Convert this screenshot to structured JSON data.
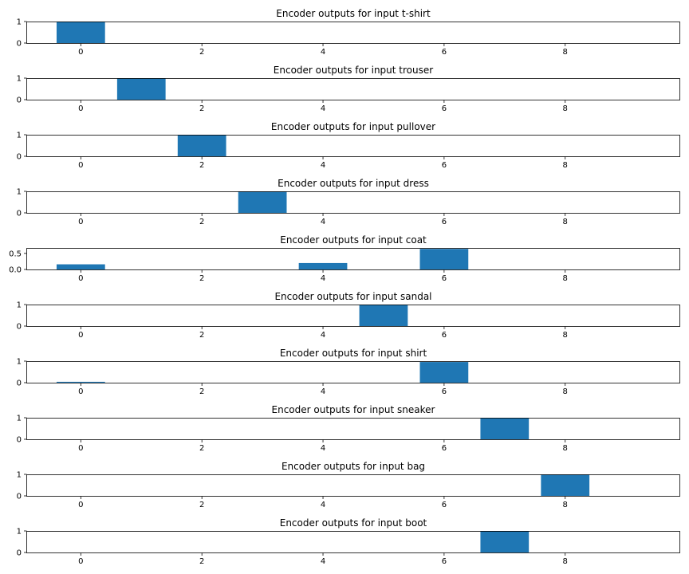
{
  "chart_data": [
    {
      "type": "bar",
      "title": "Encoder outputs for input t-shirt",
      "x": [
        0,
        1,
        2,
        3,
        4,
        5,
        6,
        7,
        8,
        9
      ],
      "values": [
        1.0,
        0,
        0,
        0,
        0,
        0,
        0,
        0,
        0,
        0
      ],
      "ylim": [
        0,
        1
      ],
      "yticks": [
        0,
        1
      ],
      "yticklabels": [
        "0",
        "1"
      ],
      "xticks": [
        0,
        2,
        4,
        6,
        8
      ],
      "xlim": [
        -0.9,
        9.9
      ]
    },
    {
      "type": "bar",
      "title": "Encoder outputs for input trouser",
      "x": [
        0,
        1,
        2,
        3,
        4,
        5,
        6,
        7,
        8,
        9
      ],
      "values": [
        0,
        1.0,
        0,
        0,
        0,
        0,
        0,
        0,
        0,
        0
      ],
      "ylim": [
        0,
        1
      ],
      "yticks": [
        0,
        1
      ],
      "yticklabels": [
        "0",
        "1"
      ],
      "xticks": [
        0,
        2,
        4,
        6,
        8
      ],
      "xlim": [
        -0.9,
        9.9
      ]
    },
    {
      "type": "bar",
      "title": "Encoder outputs for input pullover",
      "x": [
        0,
        1,
        2,
        3,
        4,
        5,
        6,
        7,
        8,
        9
      ],
      "values": [
        0,
        0,
        1.0,
        0,
        0,
        0,
        0,
        0,
        0,
        0
      ],
      "ylim": [
        0,
        1
      ],
      "yticks": [
        0,
        1
      ],
      "yticklabels": [
        "0",
        "1"
      ],
      "xticks": [
        0,
        2,
        4,
        6,
        8
      ],
      "xlim": [
        -0.9,
        9.9
      ]
    },
    {
      "type": "bar",
      "title": "Encoder outputs for input dress",
      "x": [
        0,
        1,
        2,
        3,
        4,
        5,
        6,
        7,
        8,
        9
      ],
      "values": [
        0,
        0,
        0,
        1.0,
        0,
        0,
        0,
        0,
        0,
        0
      ],
      "ylim": [
        0,
        1
      ],
      "yticks": [
        0,
        1
      ],
      "yticklabels": [
        "0",
        "1"
      ],
      "xticks": [
        0,
        2,
        4,
        6,
        8
      ],
      "xlim": [
        -0.9,
        9.9
      ]
    },
    {
      "type": "bar",
      "title": "Encoder outputs for input coat",
      "x": [
        0,
        1,
        2,
        3,
        4,
        5,
        6,
        7,
        8,
        9
      ],
      "values": [
        0.16,
        0,
        0,
        0,
        0.2,
        0,
        0.64,
        0,
        0,
        0
      ],
      "ylim": [
        0,
        0.67
      ],
      "yticks": [
        0,
        0.5
      ],
      "yticklabels": [
        "0.0",
        "0.5"
      ],
      "xticks": [
        0,
        2,
        4,
        6,
        8
      ],
      "xlim": [
        -0.9,
        9.9
      ]
    },
    {
      "type": "bar",
      "title": "Encoder outputs for input sandal",
      "x": [
        0,
        1,
        2,
        3,
        4,
        5,
        6,
        7,
        8,
        9
      ],
      "values": [
        0,
        0,
        0,
        0,
        0,
        1.0,
        0,
        0,
        0,
        0
      ],
      "ylim": [
        0,
        1
      ],
      "yticks": [
        0,
        1
      ],
      "yticklabels": [
        "0",
        "1"
      ],
      "xticks": [
        0,
        2,
        4,
        6,
        8
      ],
      "xlim": [
        -0.9,
        9.9
      ]
    },
    {
      "type": "bar",
      "title": "Encoder outputs for input shirt",
      "x": [
        0,
        1,
        2,
        3,
        4,
        5,
        6,
        7,
        8,
        9
      ],
      "values": [
        0.04,
        0,
        0,
        0,
        0,
        0,
        0.96,
        0,
        0,
        0
      ],
      "ylim": [
        0,
        1
      ],
      "yticks": [
        0,
        1
      ],
      "yticklabels": [
        "0",
        "1"
      ],
      "xticks": [
        0,
        2,
        4,
        6,
        8
      ],
      "xlim": [
        -0.9,
        9.9
      ]
    },
    {
      "type": "bar",
      "title": "Encoder outputs for input sneaker",
      "x": [
        0,
        1,
        2,
        3,
        4,
        5,
        6,
        7,
        8,
        9
      ],
      "values": [
        0,
        0,
        0,
        0,
        0,
        0,
        0,
        1.0,
        0,
        0
      ],
      "ylim": [
        0,
        1
      ],
      "yticks": [
        0,
        1
      ],
      "yticklabels": [
        "0",
        "1"
      ],
      "xticks": [
        0,
        2,
        4,
        6,
        8
      ],
      "xlim": [
        -0.9,
        9.9
      ]
    },
    {
      "type": "bar",
      "title": "Encoder outputs for input bag",
      "x": [
        0,
        1,
        2,
        3,
        4,
        5,
        6,
        7,
        8,
        9
      ],
      "values": [
        0,
        0,
        0,
        0,
        0,
        0,
        0,
        0,
        1.0,
        0
      ],
      "ylim": [
        0,
        1
      ],
      "yticks": [
        0,
        1
      ],
      "yticklabels": [
        "0",
        "1"
      ],
      "xticks": [
        0,
        2,
        4,
        6,
        8
      ],
      "xlim": [
        -0.9,
        9.9
      ]
    },
    {
      "type": "bar",
      "title": "Encoder outputs for input boot",
      "x": [
        0,
        1,
        2,
        3,
        4,
        5,
        6,
        7,
        8,
        9
      ],
      "values": [
        0,
        0,
        0,
        0,
        0,
        0,
        0,
        1.0,
        0,
        0
      ],
      "ylim": [
        0,
        1
      ],
      "yticks": [
        0,
        1
      ],
      "yticklabels": [
        "0",
        "1"
      ],
      "xticks": [
        0,
        2,
        4,
        6,
        8
      ],
      "xlim": [
        -0.9,
        9.9
      ]
    }
  ],
  "colors": {
    "bar": "#1f77b4",
    "axes": "#000000"
  }
}
